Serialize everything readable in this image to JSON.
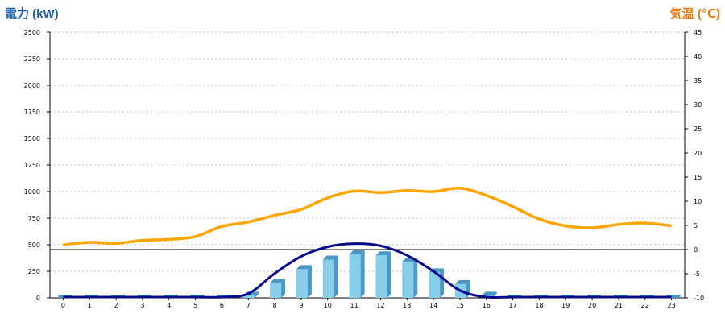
{
  "chart_data": {
    "type": "bar",
    "left_axis_title": "電力 (kW)",
    "right_axis_title": "気温 (℃)",
    "colors": {
      "left_title": "#1f5fa8",
      "right_title": "#f07a10",
      "bar_front": "#87ceeb",
      "bar_side": "#4a97c4",
      "bar_top": "#b9e3f5",
      "flat_bar": "#4a97c4",
      "curve": "#0a0a8c",
      "temperature": "#ffa500",
      "grid": "#c0c0c0"
    },
    "categories": [
      "0",
      "1",
      "2",
      "3",
      "4",
      "5",
      "6",
      "7",
      "8",
      "9",
      "10",
      "11",
      "12",
      "13",
      "14",
      "15",
      "16",
      "17",
      "18",
      "19",
      "20",
      "21",
      "22",
      "23"
    ],
    "ylim_left": [
      0,
      2500
    ],
    "ylim_right": [
      -10,
      45
    ],
    "yticks_left": [
      "0",
      "250",
      "500",
      "750",
      "1000",
      "1250",
      "1500",
      "1750",
      "2000",
      "2250",
      "2500"
    ],
    "yticks_right": [
      "-10",
      "-5",
      "0",
      "5",
      "10",
      "15",
      "20",
      "25",
      "30",
      "35",
      "40",
      "45"
    ],
    "reference_line_temp": 0,
    "grid": true,
    "series": [
      {
        "axis": "left",
        "type": "bar",
        "values": [
          0,
          0,
          0,
          0,
          0,
          0,
          0,
          20,
          140,
          270,
          360,
          410,
          400,
          340,
          240,
          130,
          20,
          0,
          0,
          0,
          0,
          0,
          0,
          0
        ]
      },
      {
        "axis": "left",
        "type": "line",
        "values": [
          0,
          0,
          0,
          0,
          0,
          0,
          0,
          40,
          230,
          390,
          480,
          510,
          490,
          400,
          250,
          70,
          0,
          0,
          0,
          0,
          0,
          0,
          0,
          0
        ]
      },
      {
        "axis": "right",
        "type": "line",
        "values": [
          1.0,
          1.5,
          1.3,
          1.9,
          2.1,
          2.7,
          4.8,
          5.7,
          7.1,
          8.3,
          10.7,
          12.1,
          11.8,
          12.2,
          12.0,
          12.7,
          11.2,
          8.9,
          6.3,
          4.9,
          4.5,
          5.2,
          5.5,
          4.9
        ]
      }
    ]
  }
}
